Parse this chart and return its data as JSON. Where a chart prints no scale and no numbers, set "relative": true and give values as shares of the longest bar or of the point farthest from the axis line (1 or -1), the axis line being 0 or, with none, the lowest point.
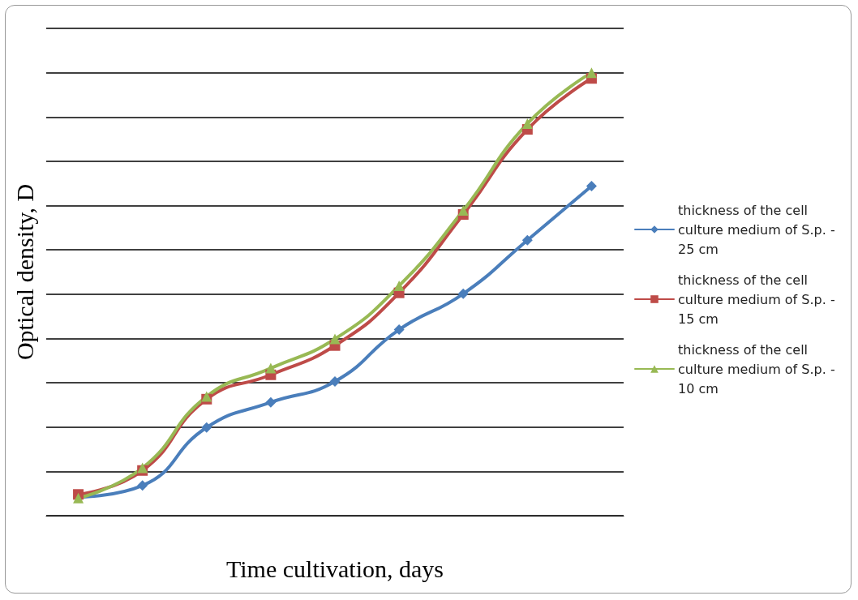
{
  "chart_data": {
    "type": "line",
    "relative": true,
    "xlabel": "Time cultivation, days",
    "ylabel": "Optical density, D",
    "categories": [
      null,
      null,
      null,
      null,
      null,
      null,
      null,
      null,
      null
    ],
    "series": [
      {
        "name": "thickness of the cell culture medium of S.p. - 25 cm",
        "color": "#4a7ebb",
        "marker": "diamond",
        "values": [
          0.042,
          0.068,
          0.199,
          0.256,
          0.303,
          0.42,
          0.501,
          0.622,
          0.744
        ]
      },
      {
        "name": "thickness of the cell culture medium of S.p. - 15 cm",
        "color": "#be4b48",
        "marker": "square",
        "values": [
          0.048,
          0.102,
          0.263,
          0.318,
          0.384,
          0.503,
          0.68,
          0.872,
          0.987
        ]
      },
      {
        "name": "thickness of the cell culture medium of S.p. - 10 cm",
        "color": "#98b954",
        "marker": "triangle",
        "values": [
          0.04,
          0.108,
          0.269,
          0.333,
          0.399,
          0.519,
          0.689,
          0.885,
          1
        ]
      }
    ],
    "grid": "y",
    "legend": "right",
    "line_style": "solid"
  }
}
